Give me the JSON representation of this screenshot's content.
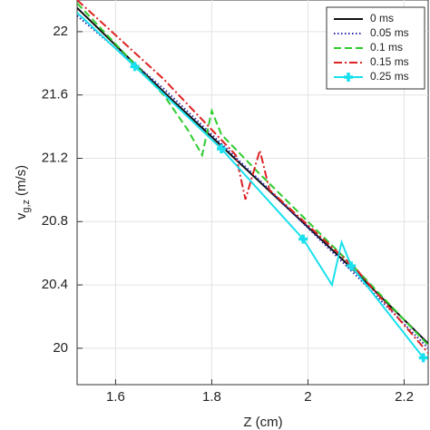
{
  "chart_data": {
    "type": "line",
    "x_label": "Z (cm)",
    "y_label": "v",
    "y_label_sub": "g,z",
    "y_label_unit": "(m/s)",
    "xlim": [
      1.52,
      2.25
    ],
    "xticks": [
      1.6,
      1.8,
      2,
      2.2
    ],
    "ylim": [
      19.77,
      22.2
    ],
    "yticks": [
      20,
      20.4,
      20.8,
      21.2,
      21.6,
      22
    ],
    "grid": true,
    "legend": "upper right",
    "series": [
      {
        "name": "0 ms",
        "color": "#111111",
        "dash": "solid",
        "x": [
          1.52,
          1.7,
          1.9,
          2.1,
          2.25
        ],
        "values": [
          22.15,
          21.62,
          21.05,
          20.48,
          20.03
        ]
      },
      {
        "name": "0.05 ms",
        "color": "#2a2ab0",
        "dash": "dotted",
        "x": [
          1.52,
          1.7,
          1.9,
          2.1,
          2.25
        ],
        "values": [
          22.1,
          21.64,
          21.06,
          20.46,
          20.0
        ]
      },
      {
        "name": "0.1 ms",
        "color": "#2ecc2e",
        "dash": "dashed",
        "x": [
          1.52,
          1.7,
          1.75,
          1.78,
          1.8,
          1.82,
          1.9,
          2.1,
          2.25
        ],
        "values": [
          22.18,
          21.6,
          21.38,
          21.22,
          21.5,
          21.35,
          21.1,
          20.5,
          20.02
        ]
      },
      {
        "name": "0.15 ms",
        "color": "#dd2222",
        "dash": "dashdot",
        "x": [
          1.52,
          1.7,
          1.85,
          1.87,
          1.9,
          1.92,
          2.1,
          2.25
        ],
        "values": [
          22.2,
          21.7,
          21.22,
          20.94,
          21.25,
          21.0,
          20.5,
          19.97
        ]
      },
      {
        "name": "0.25 ms",
        "color": "#19e0ee",
        "dash": "solid",
        "x": [
          1.52,
          1.64,
          1.82,
          1.99,
          2.05,
          2.07,
          2.09,
          2.24
        ],
        "values": [
          22.12,
          21.78,
          21.26,
          20.69,
          20.4,
          20.67,
          20.52,
          19.94
        ],
        "markers": [
          false,
          true,
          true,
          true,
          false,
          false,
          true,
          true
        ]
      }
    ]
  }
}
